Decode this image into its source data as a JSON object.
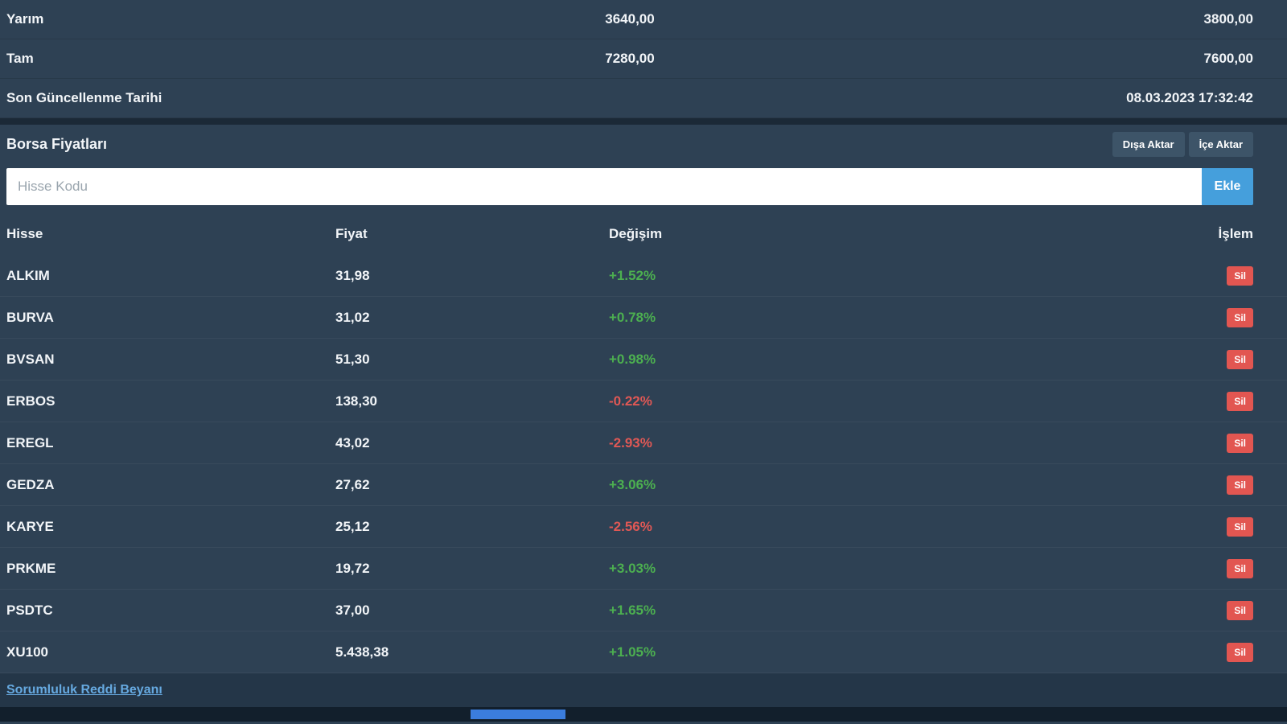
{
  "colors": {
    "background": "#2e4154",
    "divider": "#1b2937",
    "footer_background": "#243648",
    "bottom_strip": "#121f2c",
    "positive_change": "#4caf50",
    "negative_change": "#e05855",
    "add_button": "#459fdc",
    "delete_button": "#e25651",
    "link": "#66a9e0"
  },
  "summary": {
    "rows": [
      {
        "label": "Yarım",
        "mid": "3640,00",
        "right": "3800,00"
      },
      {
        "label": "Tam",
        "mid": "7280,00",
        "right": "7600,00"
      },
      {
        "label": "Son Güncellenme Tarihi",
        "mid": "",
        "right": "08.03.2023 17:32:42"
      }
    ]
  },
  "section": {
    "title": "Borsa Fiyatları",
    "export_label": "Dışa Aktar",
    "import_label": "İçe Aktar"
  },
  "search": {
    "placeholder": "Hisse Kodu",
    "value": "",
    "add_label": "Ekle"
  },
  "table": {
    "headers": {
      "stock": "Hisse",
      "price": "Fiyat",
      "change": "Değişim",
      "action": "İşlem"
    },
    "delete_label": "Sil",
    "rows": [
      {
        "code": "ALKIM",
        "price": "31,98",
        "change": "+1.52%"
      },
      {
        "code": "BURVA",
        "price": "31,02",
        "change": "+0.78%"
      },
      {
        "code": "BVSAN",
        "price": "51,30",
        "change": "+0.98%"
      },
      {
        "code": "ERBOS",
        "price": "138,30",
        "change": "-0.22%"
      },
      {
        "code": "EREGL",
        "price": "43,02",
        "change": "-2.93%"
      },
      {
        "code": "GEDZA",
        "price": "27,62",
        "change": "+3.06%"
      },
      {
        "code": "KARYE",
        "price": "25,12",
        "change": "-2.56%"
      },
      {
        "code": "PRKME",
        "price": "19,72",
        "change": "+3.03%"
      },
      {
        "code": "PSDTC",
        "price": "37,00",
        "change": "+1.65%"
      },
      {
        "code": "XU100",
        "price": "5.438,38",
        "change": "+1.05%"
      }
    ]
  },
  "footer": {
    "disclaimer_link": "Sorumluluk Reddi Beyanı"
  }
}
